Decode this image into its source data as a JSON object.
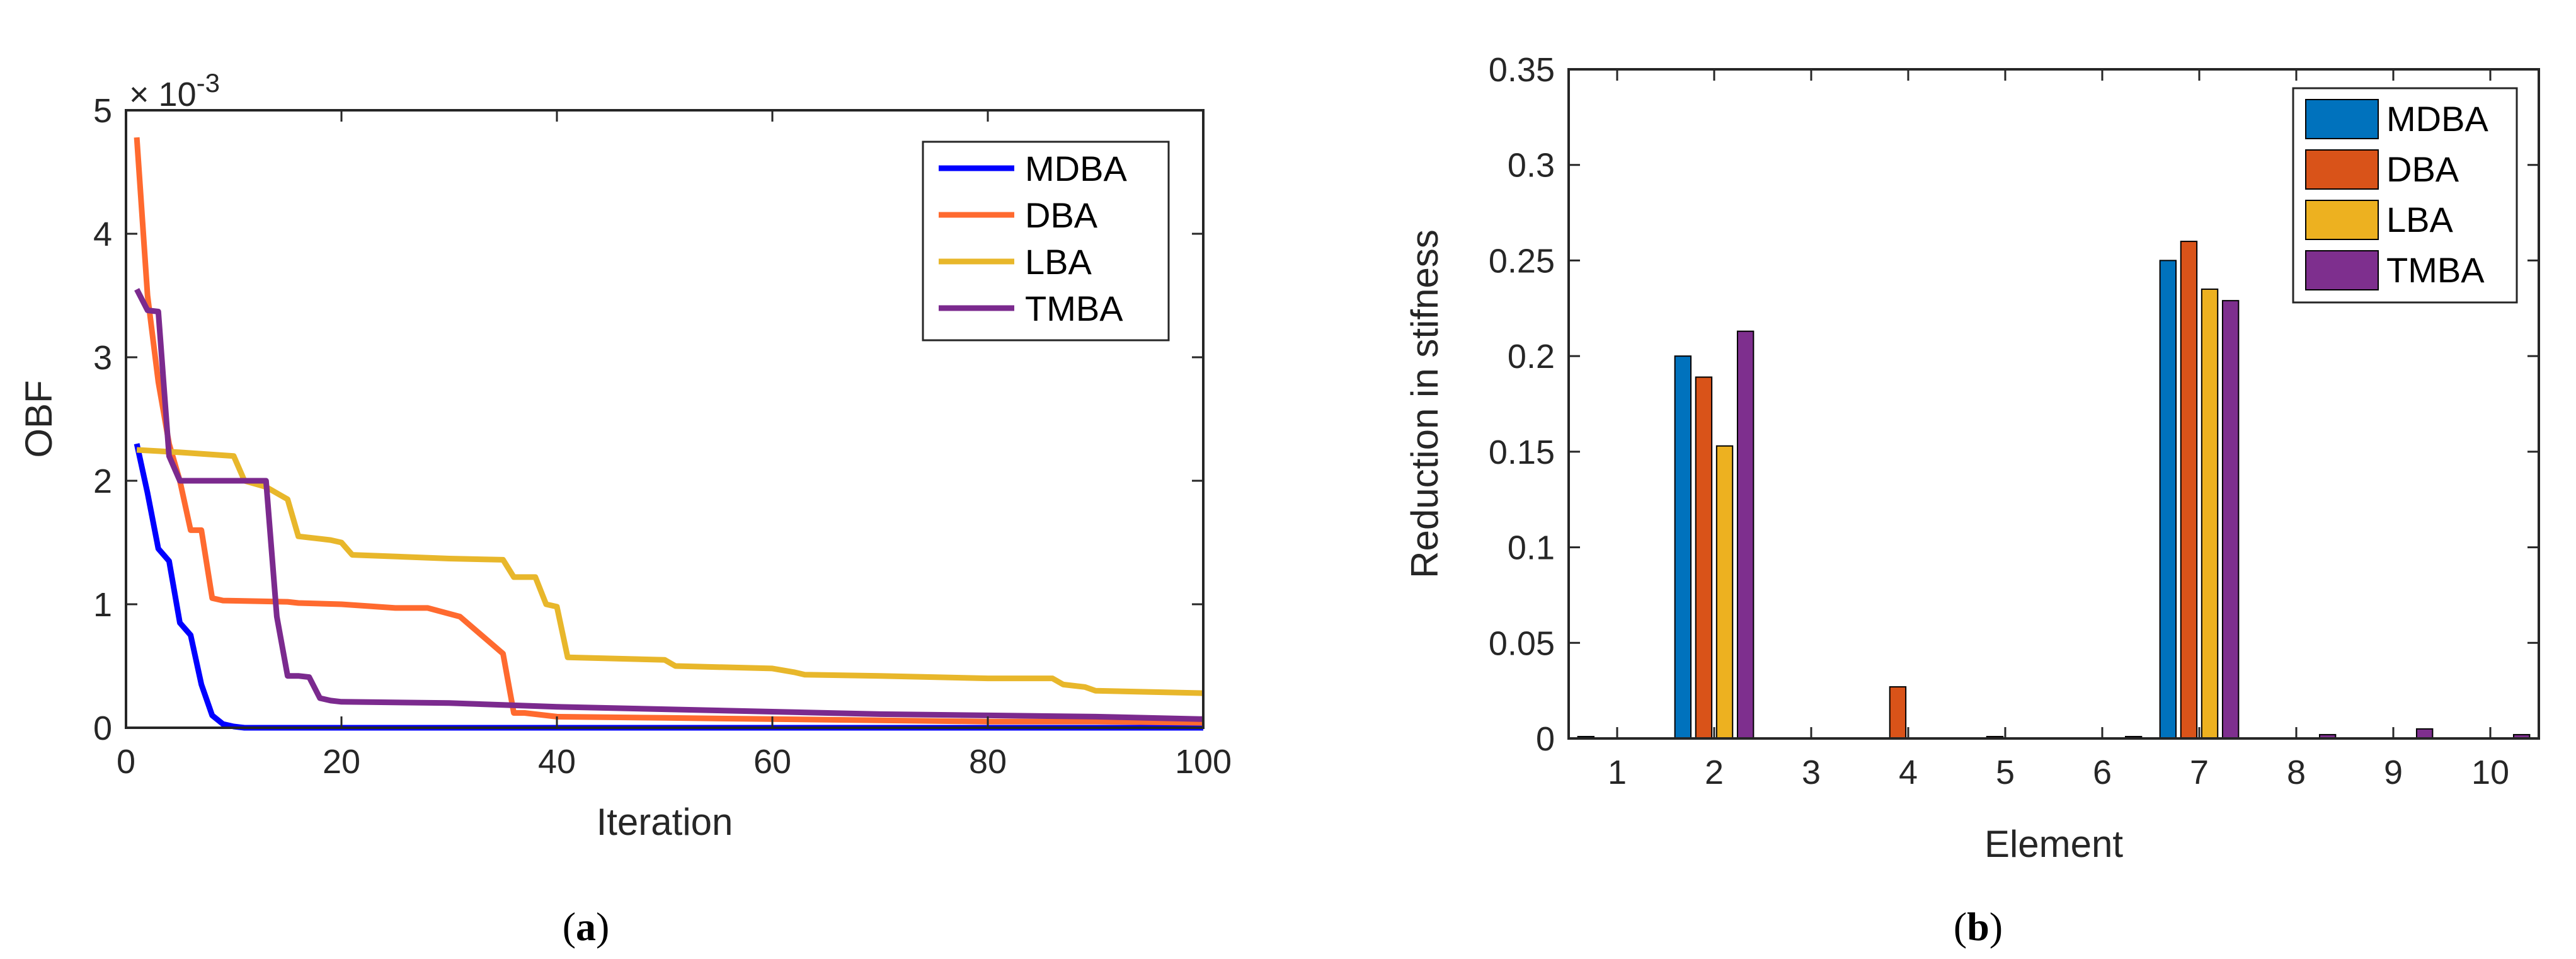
{
  "chart_data": [
    {
      "type": "line",
      "panel": "a",
      "xlabel": "Iteration",
      "ylabel": "OBF",
      "exponent_base": "× 10",
      "exponent_power": "-3",
      "xlim": [
        0,
        100
      ],
      "ylim": [
        0,
        5
      ],
      "xticks": [
        0,
        20,
        40,
        60,
        80,
        100
      ],
      "yticks": [
        0,
        1,
        2,
        3,
        4,
        5
      ],
      "legend_position": "top-right",
      "series": [
        {
          "name": "MDBA",
          "color": "#0000ff",
          "x": [
            1,
            2,
            3,
            4,
            5,
            6,
            7,
            8,
            9,
            10,
            11,
            15,
            20,
            30,
            50,
            70,
            100
          ],
          "y": [
            2.3,
            1.9,
            1.45,
            1.35,
            0.85,
            0.75,
            0.35,
            0.1,
            0.03,
            0.01,
            0.0,
            0.0,
            0.0,
            0.0,
            0.0,
            0.0,
            0.0
          ]
        },
        {
          "name": "DBA",
          "color": "#ff6a2f",
          "x": [
            1,
            2,
            3,
            4,
            5,
            6,
            6.5,
            7,
            8,
            9,
            15,
            16,
            20,
            25,
            28,
            31,
            35,
            36,
            37,
            40,
            50,
            60,
            70,
            80,
            90,
            100
          ],
          "y": [
            4.78,
            3.5,
            2.8,
            2.3,
            2.0,
            1.6,
            1.6,
            1.6,
            1.05,
            1.03,
            1.02,
            1.01,
            1.0,
            0.97,
            0.97,
            0.9,
            0.6,
            0.12,
            0.12,
            0.09,
            0.08,
            0.07,
            0.06,
            0.05,
            0.05,
            0.04
          ]
        },
        {
          "name": "LBA",
          "color": "#e8b72b",
          "x": [
            1,
            5,
            10,
            11,
            13,
            14,
            15,
            16,
            19,
            20,
            21,
            30,
            35,
            36,
            37,
            38,
            39,
            40,
            41,
            50,
            51,
            60,
            62,
            63,
            70,
            80,
            86,
            87,
            89,
            90,
            100
          ],
          "y": [
            2.25,
            2.23,
            2.2,
            2.0,
            1.95,
            1.9,
            1.85,
            1.55,
            1.52,
            1.5,
            1.4,
            1.37,
            1.36,
            1.22,
            1.22,
            1.22,
            1.0,
            0.98,
            0.57,
            0.55,
            0.5,
            0.48,
            0.45,
            0.43,
            0.42,
            0.4,
            0.4,
            0.35,
            0.33,
            0.3,
            0.28
          ]
        },
        {
          "name": "TMBA",
          "color": "#7b2a8e",
          "x": [
            1,
            2,
            3,
            4,
            5,
            10,
            13,
            14,
            15,
            16,
            17,
            18,
            19,
            20,
            30,
            40,
            50,
            60,
            70,
            80,
            90,
            100
          ],
          "y": [
            3.55,
            3.38,
            3.37,
            2.2,
            2.0,
            2.0,
            2.0,
            0.9,
            0.42,
            0.42,
            0.41,
            0.24,
            0.22,
            0.21,
            0.2,
            0.17,
            0.15,
            0.13,
            0.11,
            0.1,
            0.09,
            0.07
          ]
        }
      ]
    },
    {
      "type": "bar",
      "panel": "b",
      "xlabel": "Element",
      "ylabel": "Reduction in stifness",
      "categories": [
        "1",
        "2",
        "3",
        "4",
        "5",
        "6",
        "7",
        "8",
        "9",
        "10"
      ],
      "ylim": [
        0,
        0.35
      ],
      "yticks": [
        0,
        0.05,
        0.1,
        0.15,
        0.2,
        0.25,
        0.3,
        0.35
      ],
      "ytick_labels": [
        "0",
        "0.05",
        "0.1",
        "0.15",
        "0.2",
        "0.25",
        "0.3",
        "0.35"
      ],
      "legend_position": "top-right",
      "series": [
        {
          "name": "MDBA",
          "color": "#0072bd",
          "values": [
            0.001,
            0.2,
            0.0,
            0.0,
            0.0,
            0.0,
            0.25,
            0.0,
            0.0,
            0.0
          ]
        },
        {
          "name": "DBA",
          "color": "#d95319",
          "values": [
            0.0,
            0.189,
            0.0,
            0.027,
            0.001,
            0.0,
            0.26,
            0.0,
            0.0,
            0.0
          ]
        },
        {
          "name": "LBA",
          "color": "#edb120",
          "values": [
            0.0,
            0.153,
            0.0,
            0.0,
            0.0,
            0.0,
            0.235,
            0.0,
            0.0,
            0.0
          ]
        },
        {
          "name": "TMBA",
          "color": "#7e2f8e",
          "values": [
            0.0,
            0.213,
            0.0,
            0.0,
            0.0,
            0.001,
            0.229,
            0.002,
            0.005,
            0.002
          ]
        }
      ]
    }
  ],
  "captions": {
    "a": {
      "open": "(",
      "letter": "a",
      "close": ")"
    },
    "b": {
      "open": "(",
      "letter": "b",
      "close": ")"
    }
  }
}
